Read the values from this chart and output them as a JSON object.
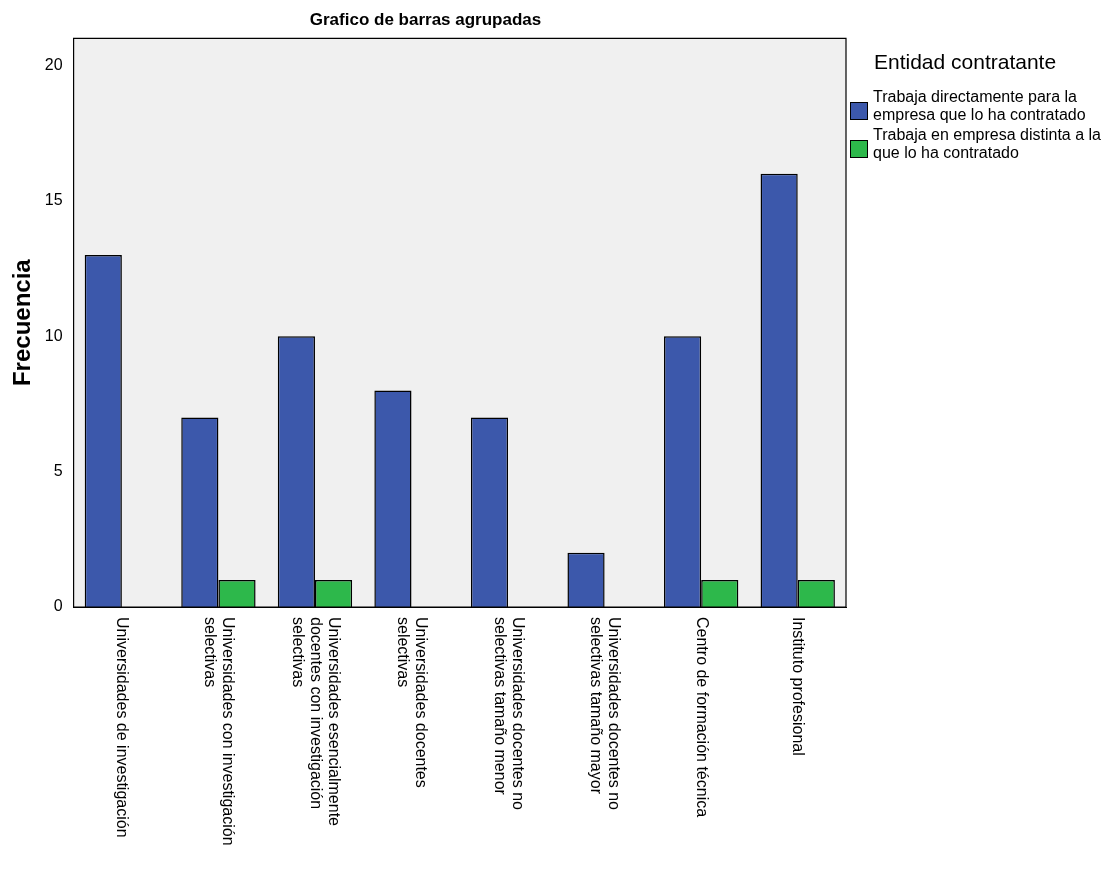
{
  "chart_data": {
    "type": "bar",
    "title": "Grafico de barras agrupadas",
    "ylabel": "Frecuencia",
    "legend_title": "Entidad contratante",
    "categories": [
      "Universidades de investigación",
      "Universidades con investigación selectivas",
      "Universidades esencialmente docentes con investigación selectivas",
      "Universidades docentes selectivas",
      "Universidades docentes no selectivas tamaño menor",
      "Universidades docentes no selectivas tamaño mayor",
      "Centro de formación técnica",
      "Instituto profesional"
    ],
    "series": [
      {
        "name": "Trabaja directamente para la empresa que lo ha contratado",
        "color": "#3c58ab",
        "values": [
          13,
          7,
          10,
          8,
          7,
          2,
          10,
          16
        ]
      },
      {
        "name": "Trabaja en empresa distinta a la que lo ha contratado",
        "color": "#2db84b",
        "values": [
          null,
          1,
          1,
          null,
          null,
          null,
          1,
          1
        ]
      }
    ],
    "ylim": [
      0,
      21
    ],
    "yticks": [
      0,
      5,
      10,
      15,
      20
    ],
    "grid": false,
    "legend": "right"
  }
}
